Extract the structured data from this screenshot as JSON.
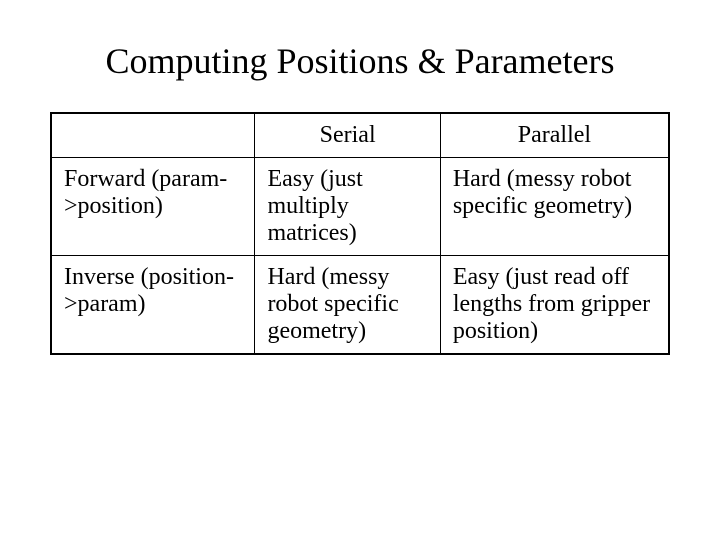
{
  "title": "Computing Positions & Parameters",
  "table": {
    "columns": [
      "",
      "Serial",
      "Parallel"
    ],
    "rows": [
      {
        "header": "Forward (param->position)",
        "serial": "Easy (just multiply matrices)",
        "parallel": "Hard (messy robot specific geometry)"
      },
      {
        "header": "Inverse (position->param)",
        "serial": "Hard (messy robot specific geometry)",
        "parallel": "Easy (just read off lengths from gripper position)"
      }
    ],
    "border_color": "#000000",
    "background_color": "#ffffff",
    "title_fontsize": 36,
    "cell_fontsize": 24,
    "font_family": "Times New Roman",
    "column_widths": [
      "33%",
      "30%",
      "37%"
    ]
  }
}
